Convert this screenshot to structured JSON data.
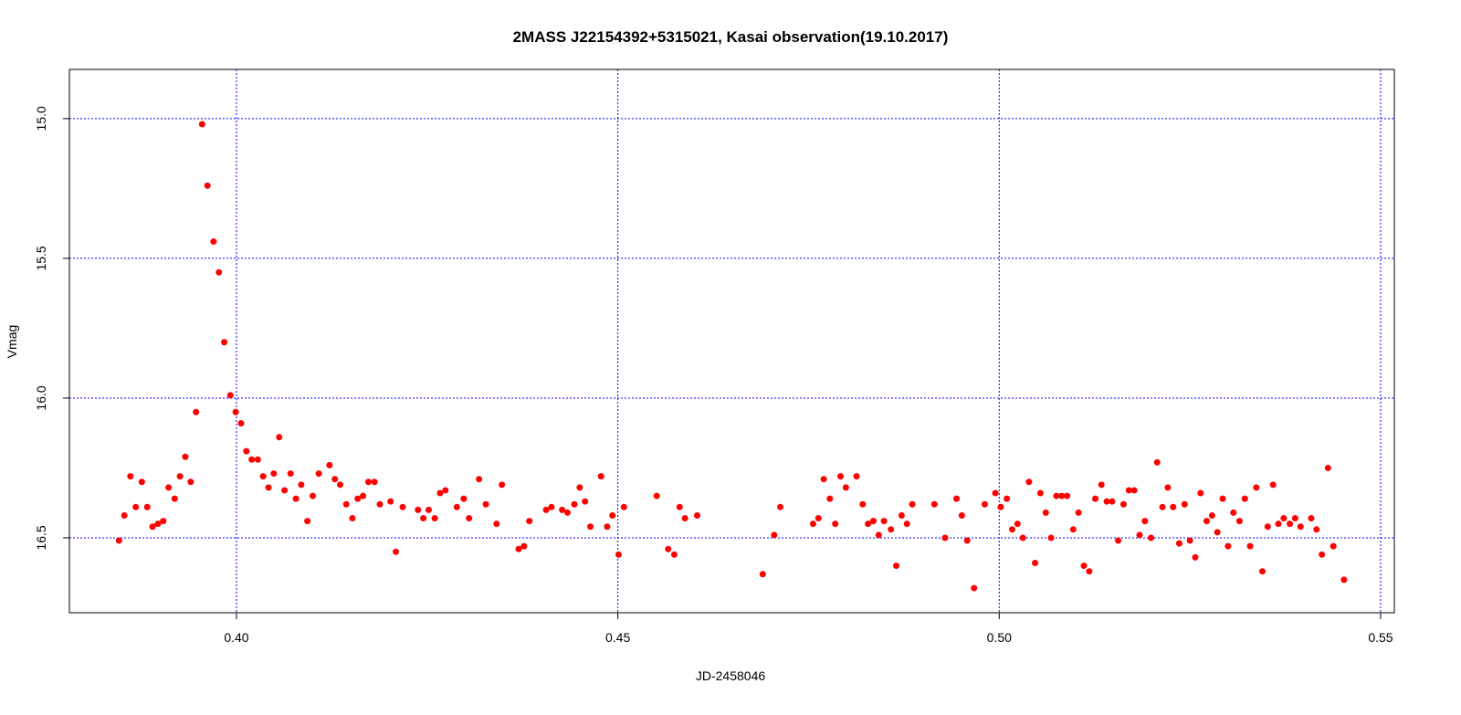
{
  "chart_data": {
    "type": "scatter",
    "title": "2MASS J22154392+5315021, Kasai observation(19.10.2017)",
    "x_label": "JD-2458046",
    "y_label": "Vmag",
    "color": "#ff0000",
    "grid": true,
    "grid_color": "#0000ff",
    "xlim": [
      0.3781,
      0.5518
    ],
    "ylim": [
      16.768,
      14.824
    ],
    "xticks": [
      {
        "value": 0.4,
        "label": "0.40"
      },
      0.45,
      {
        "value": 0.5,
        "label": "0.50"
      },
      0.55
    ],
    "yticks": [
      {
        "value": 15,
        "label": "15.0"
      },
      15.5,
      {
        "value": 16,
        "label": "16.0"
      },
      16.5
    ],
    "x": [
      0.3846,
      0.3853,
      0.3861,
      0.3868,
      0.3876,
      0.3883,
      0.389,
      0.3897,
      0.3904,
      0.3911,
      0.3919,
      0.3926,
      0.3933,
      0.394,
      0.3947,
      0.3955,
      0.3962,
      0.397,
      0.3977,
      0.3984,
      0.3992,
      0.3999,
      0.4006,
      0.4013,
      0.402,
      0.4028,
      0.4035,
      0.4042,
      0.4049,
      0.4056,
      0.4063,
      0.4071,
      0.4078,
      0.4085,
      0.4093,
      0.41,
      0.4108,
      0.4122,
      0.4129,
      0.4136,
      0.4144,
      0.4152,
      0.4159,
      0.4166,
      0.4173,
      0.4181,
      0.4188,
      0.4202,
      0.4209,
      0.4218,
      0.4238,
      0.4245,
      0.4252,
      0.426,
      0.4267,
      0.4274,
      0.4289,
      0.4298,
      0.4305,
      0.4318,
      0.4327,
      0.4341,
      0.4348,
      0.437,
      0.4377,
      0.4384,
      0.4406,
      0.4413,
      0.4427,
      0.4434,
      0.4443,
      0.445,
      0.4457,
      0.4464,
      0.4478,
      0.4486,
      0.4493,
      0.4501,
      0.4508,
      0.4551,
      0.4566,
      0.4574,
      0.4581,
      0.4588,
      0.4604,
      0.469,
      0.4705,
      0.4713,
      0.4756,
      0.4763,
      0.477,
      0.4778,
      0.4785,
      0.4792,
      0.4799,
      0.4813,
      0.4821,
      0.4828,
      0.4835,
      0.4842,
      0.4849,
      0.4858,
      0.4865,
      0.4872,
      0.4879,
      0.4886,
      0.4915,
      0.4929,
      0.4944,
      0.4951,
      0.4958,
      0.4967,
      0.4981,
      0.4995,
      0.5002,
      0.501,
      0.5017,
      0.5024,
      0.5031,
      0.5039,
      0.5047,
      0.5054,
      0.5061,
      0.5068,
      0.5075,
      0.5082,
      0.5089,
      0.5097,
      0.5104,
      0.5111,
      0.5118,
      0.5126,
      0.5134,
      0.5141,
      0.5148,
      0.5156,
      0.5163,
      0.517,
      0.5177,
      0.5184,
      0.5191,
      0.5199,
      0.5207,
      0.5214,
      0.5221,
      0.5228,
      0.5236,
      0.5243,
      0.525,
      0.5257,
      0.5264,
      0.5272,
      0.5279,
      0.5286,
      0.5293,
      0.53,
      0.5307,
      0.5315,
      0.5322,
      0.5329,
      0.5337,
      0.5345,
      0.5352,
      0.5359,
      0.5366,
      0.5373,
      0.5381,
      0.5388,
      0.5395,
      0.5409,
      0.5416,
      0.5423,
      0.5431,
      0.5438,
      0.5452
    ],
    "values": [
      16.51,
      16.42,
      16.28,
      16.39,
      16.3,
      16.39,
      16.46,
      16.45,
      16.44,
      16.32,
      16.36,
      16.28,
      16.21,
      16.3,
      16.05,
      15.02,
      15.24,
      15.44,
      15.55,
      15.8,
      15.99,
      16.05,
      16.09,
      16.19,
      16.22,
      16.22,
      16.28,
      16.32,
      16.27,
      16.14,
      16.33,
      16.27,
      16.36,
      16.31,
      16.44,
      16.35,
      16.27,
      16.24,
      16.29,
      16.31,
      16.38,
      16.43,
      16.36,
      16.35,
      16.3,
      16.3,
      16.38,
      16.37,
      16.55,
      16.39,
      16.4,
      16.43,
      16.4,
      16.43,
      16.34,
      16.33,
      16.39,
      16.36,
      16.43,
      16.29,
      16.38,
      16.45,
      16.31,
      16.54,
      16.53,
      16.44,
      16.4,
      16.39,
      16.4,
      16.41,
      16.38,
      16.32,
      16.37,
      16.46,
      16.28,
      16.46,
      16.42,
      16.56,
      16.39,
      16.35,
      16.54,
      16.56,
      16.39,
      16.43,
      16.42,
      16.63,
      16.49,
      16.39,
      16.45,
      16.43,
      16.29,
      16.36,
      16.45,
      16.28,
      16.32,
      16.28,
      16.38,
      16.45,
      16.44,
      16.49,
      16.44,
      16.47,
      16.6,
      16.42,
      16.45,
      16.38,
      16.38,
      16.5,
      16.36,
      16.42,
      16.51,
      16.68,
      16.38,
      16.34,
      16.39,
      16.36,
      16.47,
      16.45,
      16.5,
      16.3,
      16.59,
      16.34,
      16.41,
      16.5,
      16.35,
      16.35,
      16.35,
      16.47,
      16.41,
      16.6,
      16.62,
      16.36,
      16.31,
      16.37,
      16.37,
      16.51,
      16.38,
      16.33,
      16.33,
      16.49,
      16.44,
      16.5,
      16.23,
      16.39,
      16.32,
      16.39,
      16.52,
      16.38,
      16.51,
      16.57,
      16.34,
      16.44,
      16.42,
      16.48,
      16.36,
      16.53,
      16.41,
      16.44,
      16.36,
      16.53,
      16.32,
      16.62,
      16.46,
      16.31,
      16.45,
      16.43,
      16.45,
      16.43,
      16.46,
      16.43,
      16.47,
      16.56,
      16.25,
      16.53,
      16.65
    ]
  }
}
